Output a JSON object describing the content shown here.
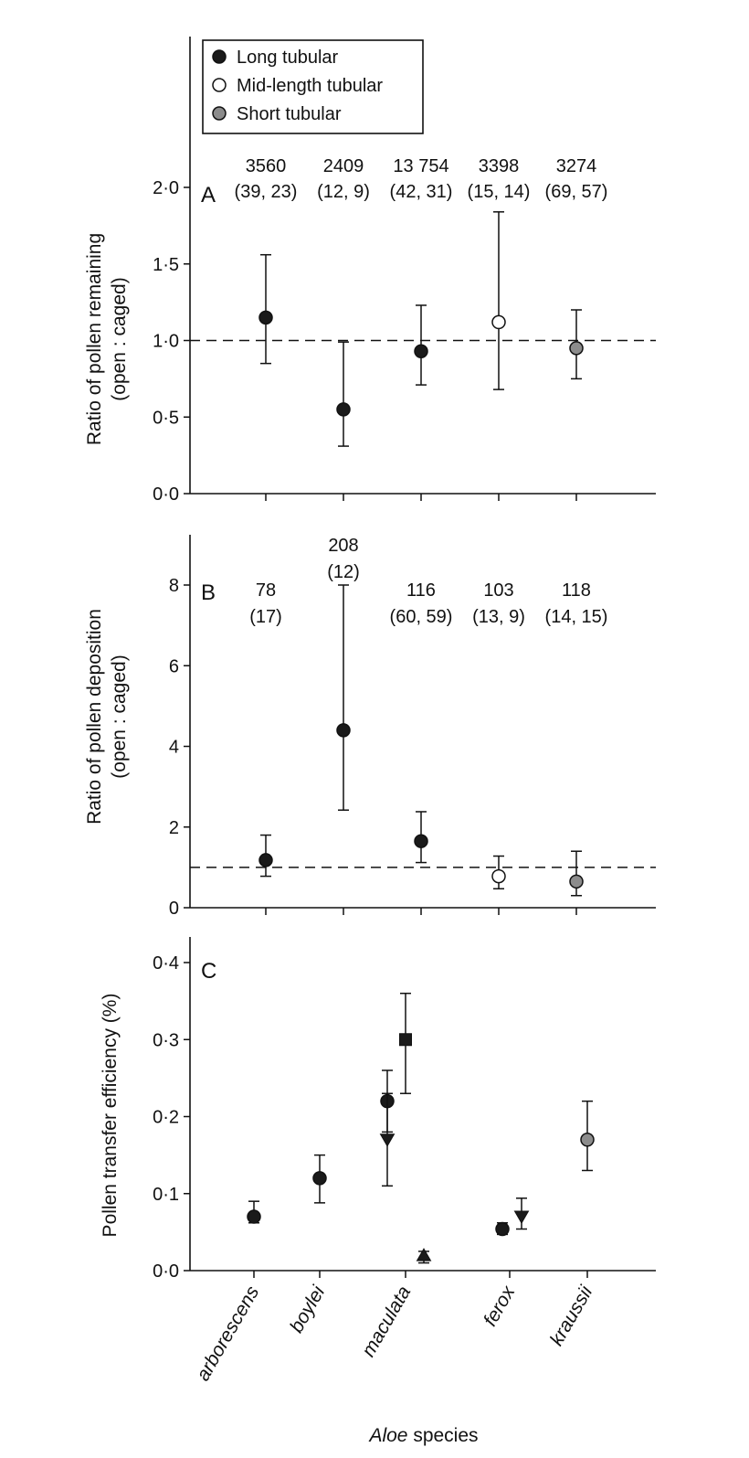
{
  "legend": [
    {
      "label": "Long tubular",
      "fill": "#1a1a1a"
    },
    {
      "label": "Mid-length tubular",
      "fill": "#ffffff"
    },
    {
      "label": "Short tubular",
      "fill": "#8c8c8c"
    }
  ],
  "xlabel_italic": "Aloe",
  "xlabel_rest": " species",
  "chart_data": [
    {
      "panel": "A",
      "type": "scatter",
      "ylabel_line1": "Ratio of pollen remaining",
      "ylabel_line2": "(open : caged)",
      "ylim": [
        0,
        2.0
      ],
      "yticks": [
        0,
        0.5,
        1.0,
        1.5,
        2.0
      ],
      "ytick_labels": [
        "0·0",
        "0·5",
        "1·0",
        "1·5",
        "2·0"
      ],
      "reference_line": 1.0,
      "categories": [
        "arborescens",
        "boylei",
        "maculata",
        "ferox",
        "kraussii"
      ],
      "annotations": [
        {
          "line1": "3560",
          "line2": "(39, 23)"
        },
        {
          "line1": "2409",
          "line2": "(12, 9)"
        },
        {
          "line1": "13 754",
          "line2": "(42, 31)"
        },
        {
          "line1": "3398",
          "line2": "(15, 14)"
        },
        {
          "line1": "3274",
          "line2": "(69, 57)"
        }
      ],
      "points": [
        {
          "category": "arborescens",
          "y": 1.15,
          "lo": 0.85,
          "hi": 1.56,
          "group": "Long tubular"
        },
        {
          "category": "boylei",
          "y": 0.55,
          "lo": 0.31,
          "hi": 0.99,
          "group": "Long tubular"
        },
        {
          "category": "maculata",
          "y": 0.93,
          "lo": 0.71,
          "hi": 1.23,
          "group": "Long tubular"
        },
        {
          "category": "ferox",
          "y": 1.12,
          "lo": 0.68,
          "hi": 1.84,
          "group": "Mid-length tubular"
        },
        {
          "category": "kraussii",
          "y": 0.95,
          "lo": 0.75,
          "hi": 1.2,
          "group": "Short tubular"
        }
      ]
    },
    {
      "panel": "B",
      "type": "scatter",
      "ylabel_line1": "Ratio of pollen deposition",
      "ylabel_line2": "(open : caged)",
      "ylim": [
        0,
        8
      ],
      "yticks": [
        0,
        2,
        4,
        6,
        8
      ],
      "ytick_labels": [
        "0",
        "2",
        "4",
        "6",
        "8"
      ],
      "reference_line": 1.0,
      "categories": [
        "arborescens",
        "boylei",
        "maculata",
        "ferox",
        "kraussii"
      ],
      "annotations": [
        {
          "line1": "78",
          "line2": "(17)"
        },
        {
          "line1": "208",
          "line2": "(12)"
        },
        {
          "line1": "116",
          "line2": "(60, 59)"
        },
        {
          "line1": "103",
          "line2": "(13, 9)"
        },
        {
          "line1": "118",
          "line2": "(14, 15)"
        }
      ],
      "points": [
        {
          "category": "arborescens",
          "y": 1.18,
          "lo": 0.78,
          "hi": 1.8,
          "group": "Long tubular"
        },
        {
          "category": "boylei",
          "y": 4.4,
          "lo": 2.42,
          "hi": 8.0,
          "group": "Long tubular"
        },
        {
          "category": "maculata",
          "y": 1.65,
          "lo": 1.12,
          "hi": 2.38,
          "group": "Long tubular"
        },
        {
          "category": "ferox",
          "y": 0.78,
          "lo": 0.47,
          "hi": 1.28,
          "group": "Mid-length tubular"
        },
        {
          "category": "kraussii",
          "y": 0.65,
          "lo": 0.3,
          "hi": 1.4,
          "group": "Short tubular"
        }
      ]
    },
    {
      "panel": "C",
      "type": "scatter",
      "ylabel": "Pollen transfer efficiency (%)",
      "ylim": [
        0,
        0.4
      ],
      "yticks": [
        0,
        0.1,
        0.2,
        0.3,
        0.4
      ],
      "ytick_labels": [
        "0·0",
        "0·1",
        "0·2",
        "0·3",
        "0·4"
      ],
      "categories": [
        "arborescens",
        "boylei",
        "maculata",
        "ferox",
        "kraussii"
      ],
      "points": [
        {
          "category": "arborescens",
          "y": 0.07,
          "lo": 0.062,
          "hi": 0.09,
          "marker": "circle",
          "fill": "#1a1a1a"
        },
        {
          "category": "boylei",
          "y": 0.12,
          "lo": 0.088,
          "hi": 0.15,
          "marker": "circle",
          "fill": "#1a1a1a"
        },
        {
          "category": "maculata",
          "y": 0.22,
          "lo": 0.18,
          "hi": 0.26,
          "marker": "circle",
          "fill": "#1a1a1a"
        },
        {
          "category": "maculata",
          "y": 0.17,
          "lo": 0.11,
          "hi": 0.23,
          "marker": "triangle-down",
          "fill": "#1a1a1a"
        },
        {
          "category": "maculata",
          "y": 0.3,
          "lo": 0.23,
          "hi": 0.36,
          "marker": "square",
          "fill": "#1a1a1a"
        },
        {
          "category": "maculata",
          "y": 0.02,
          "lo": 0.01,
          "hi": 0.025,
          "marker": "triangle-up",
          "fill": "#1a1a1a"
        },
        {
          "category": "ferox",
          "y": 0.054,
          "lo": 0.047,
          "hi": 0.062,
          "marker": "circle",
          "fill": "#1a1a1a"
        },
        {
          "category": "ferox",
          "y": 0.07,
          "lo": 0.054,
          "hi": 0.094,
          "marker": "triangle-down",
          "fill": "#1a1a1a"
        },
        {
          "category": "kraussii",
          "y": 0.17,
          "lo": 0.13,
          "hi": 0.22,
          "marker": "circle",
          "fill": "#8c8c8c"
        }
      ]
    }
  ]
}
